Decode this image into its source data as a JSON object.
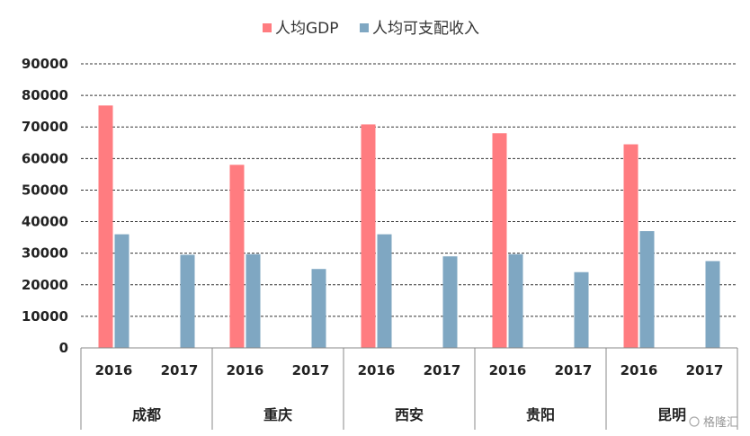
{
  "chart_data": {
    "type": "bar",
    "title": "",
    "xlabel": "",
    "ylabel": "",
    "ylim": [
      0,
      90000
    ],
    "yticks": [
      0,
      10000,
      20000,
      30000,
      40000,
      50000,
      60000,
      70000,
      80000,
      90000
    ],
    "grid": true,
    "legend_position": "top",
    "groups": [
      {
        "name": "成都",
        "years": [
          "2016",
          "2017"
        ]
      },
      {
        "name": "重庆",
        "years": [
          "2016",
          "2017"
        ]
      },
      {
        "name": "西安",
        "years": [
          "2016",
          "2017"
        ]
      },
      {
        "name": "贵阳",
        "years": [
          "2016",
          "2017"
        ]
      },
      {
        "name": "昆明",
        "years": [
          "2016",
          "2017"
        ]
      }
    ],
    "series": [
      {
        "name": "人均GDP",
        "color": "#FF7C80",
        "values": [
          [
            76800,
            null
          ],
          [
            58000,
            null
          ],
          [
            70800,
            null
          ],
          [
            68000,
            null
          ],
          [
            64500,
            null
          ]
        ]
      },
      {
        "name": "人均可支配收入",
        "color": "#7FA7C2",
        "values": [
          [
            36000,
            29500
          ],
          [
            29700,
            25000
          ],
          [
            36000,
            29000
          ],
          [
            29700,
            24000
          ],
          [
            37000,
            27500
          ]
        ]
      }
    ]
  },
  "watermark": "格隆汇"
}
